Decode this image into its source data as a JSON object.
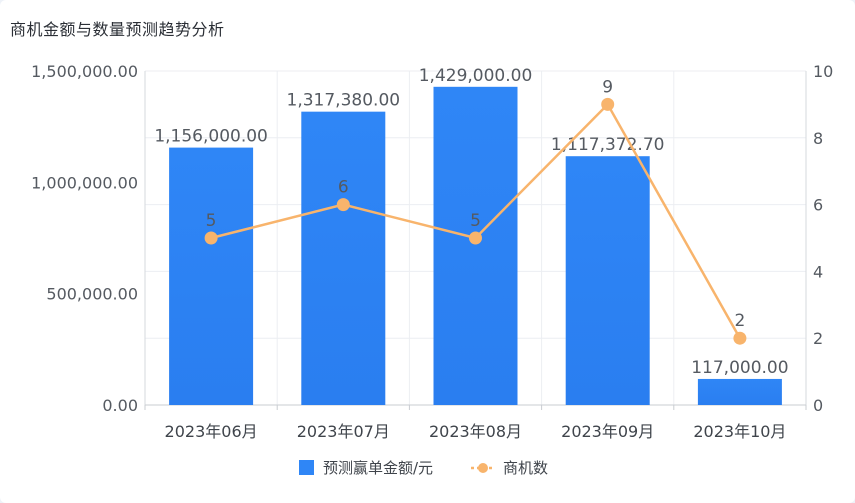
{
  "title": "商机金额与数量预测趋势分析",
  "chart_data": {
    "type": "bar",
    "title": "商机金额与数量预测趋势分析",
    "categories": [
      "2023年06月",
      "2023年07月",
      "2023年08月",
      "2023年09月",
      "2023年10月"
    ],
    "series": [
      {
        "name": "预测赢单金额/元",
        "type": "bar",
        "axis": "left",
        "color": "#2f86f6",
        "values": [
          1156000.0,
          1317380.0,
          1429000.0,
          1117372.7,
          117000.0
        ],
        "labels": [
          "1,156,000.00",
          "1,317,380.00",
          "1,429,000.00",
          "1,117,372.70",
          "117,000.00"
        ]
      },
      {
        "name": "商机数",
        "type": "line",
        "axis": "right",
        "color": "#f8b46c",
        "values": [
          5,
          6,
          5,
          9,
          2
        ],
        "labels": [
          "5",
          "6",
          "5",
          "9",
          "2"
        ]
      }
    ],
    "y_left": {
      "min": 0,
      "max": 1500000,
      "ticks": [
        0,
        500000,
        1000000,
        1500000
      ],
      "tick_labels": [
        "0.00",
        "500,000.00",
        "1,000,000.00",
        "1,500,000.00"
      ]
    },
    "y_right": {
      "min": 0,
      "max": 10,
      "ticks": [
        0,
        2,
        4,
        6,
        8,
        10
      ],
      "tick_labels": [
        "0",
        "2",
        "4",
        "6",
        "8",
        "10"
      ]
    },
    "grid": true,
    "legend_position": "bottom-center"
  }
}
